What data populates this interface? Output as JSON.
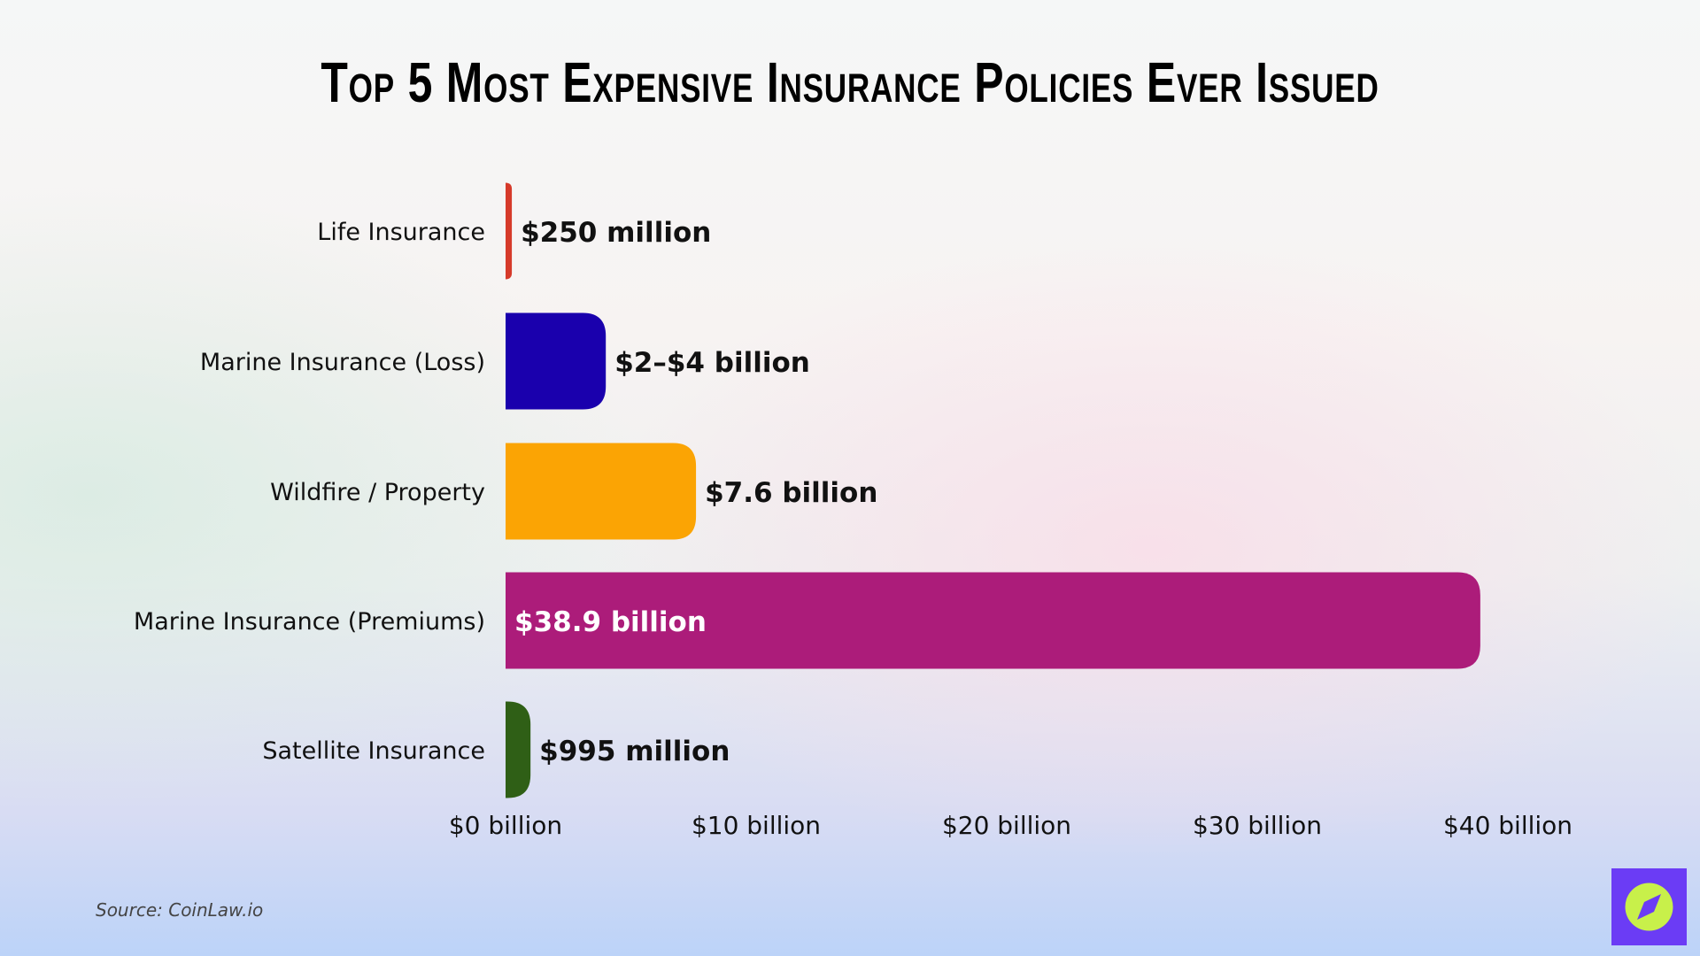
{
  "chart_data": {
    "type": "bar",
    "orientation": "horizontal",
    "title": "Top 5 Most Expensive Insurance Policies Ever Issued",
    "categories": [
      "Life Insurance",
      "Marine Insurance (Loss)",
      "Wildfire / Property",
      "Marine Insurance (Premiums)",
      "Satellite Insurance"
    ],
    "values": [
      0.25,
      4,
      7.6,
      38.9,
      0.995
    ],
    "data_labels": [
      "$250 million",
      "$2–$4 billion",
      "$7.6 billion",
      "$38.9 billion",
      "$995 million"
    ],
    "colors": [
      "#d63a2a",
      "#1a00ad",
      "#fba404",
      "#ac1c7a",
      "#2f5f16"
    ],
    "xlabel": "",
    "ylabel": "",
    "xlim": [
      0,
      40
    ],
    "x_ticks": [
      0,
      10,
      20,
      30,
      40
    ],
    "x_tick_labels": [
      "$0 billion",
      "$10 billion",
      "$20 billion",
      "$30 billion",
      "$40 billion"
    ],
    "grid": false
  },
  "source": "Source: CoinLaw.io",
  "logo": {
    "icon": "compass-icon",
    "bg": "#6b3cf5",
    "fg": "#c8f04a"
  }
}
